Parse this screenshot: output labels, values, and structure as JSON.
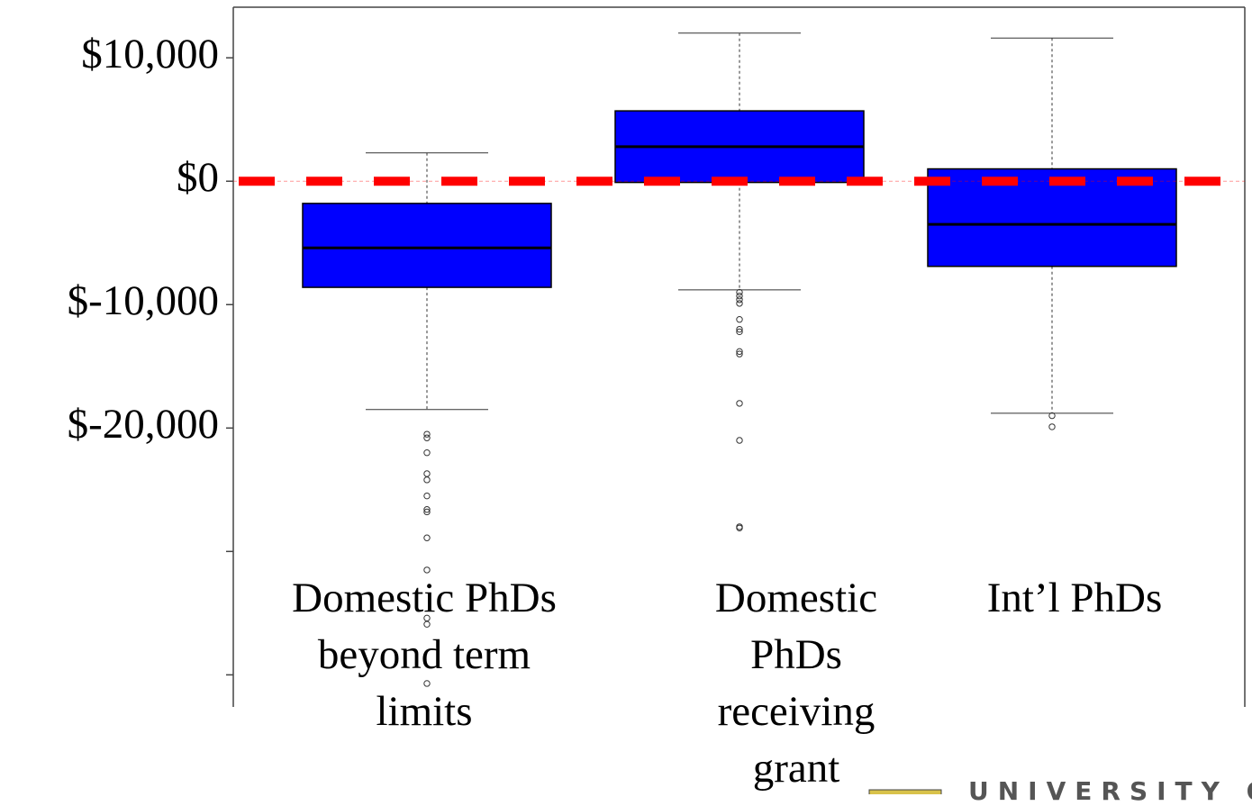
{
  "chart_data": {
    "type": "boxplot",
    "categories": [
      "Domestic PhDs beyond term limits",
      "Domestic PhDs receiving grant",
      "Int’l PhDs"
    ],
    "boxes": [
      {
        "whisker_low": -18500,
        "q1": -8600,
        "median": -5400,
        "q3": -1800,
        "whisker_high": 2300,
        "outliers": [
          -20500,
          -20800,
          -22000,
          -23700,
          -24200,
          -25500,
          -26600,
          -26800,
          -28900,
          -31500,
          -35400,
          -35900,
          -40700
        ]
      },
      {
        "whisker_low": -8800,
        "q1": -100,
        "median": 2800,
        "q3": 5700,
        "whisker_high": 12000,
        "outliers": [
          -9000,
          -9300,
          -9600,
          -9900,
          -11200,
          -12000,
          -12200,
          -13800,
          -14000,
          -18000,
          -21000,
          -28000,
          -28100
        ]
      },
      {
        "whisker_low": -18800,
        "q1": -6900,
        "median": -3500,
        "q3": 1000,
        "whisker_high": 11600,
        "outliers": [
          -19000,
          -19900
        ]
      }
    ],
    "color": "#0000ff",
    "reference_line": {
      "value": 0,
      "color": "#ff0000"
    },
    "ylim": [
      -42600,
      14100
    ],
    "yticks": [
      {
        "value": 10000,
        "label": "$10,000"
      },
      {
        "value": 0,
        "label": "$0"
      },
      {
        "value": -10000,
        "label": "$-10,000"
      },
      {
        "value": -20000,
        "label": "$-20,000"
      },
      {
        "value": -30000,
        "label": null
      },
      {
        "value": -40000,
        "label": null
      }
    ]
  },
  "footer": {
    "text": "UNIVERSITY OF"
  }
}
